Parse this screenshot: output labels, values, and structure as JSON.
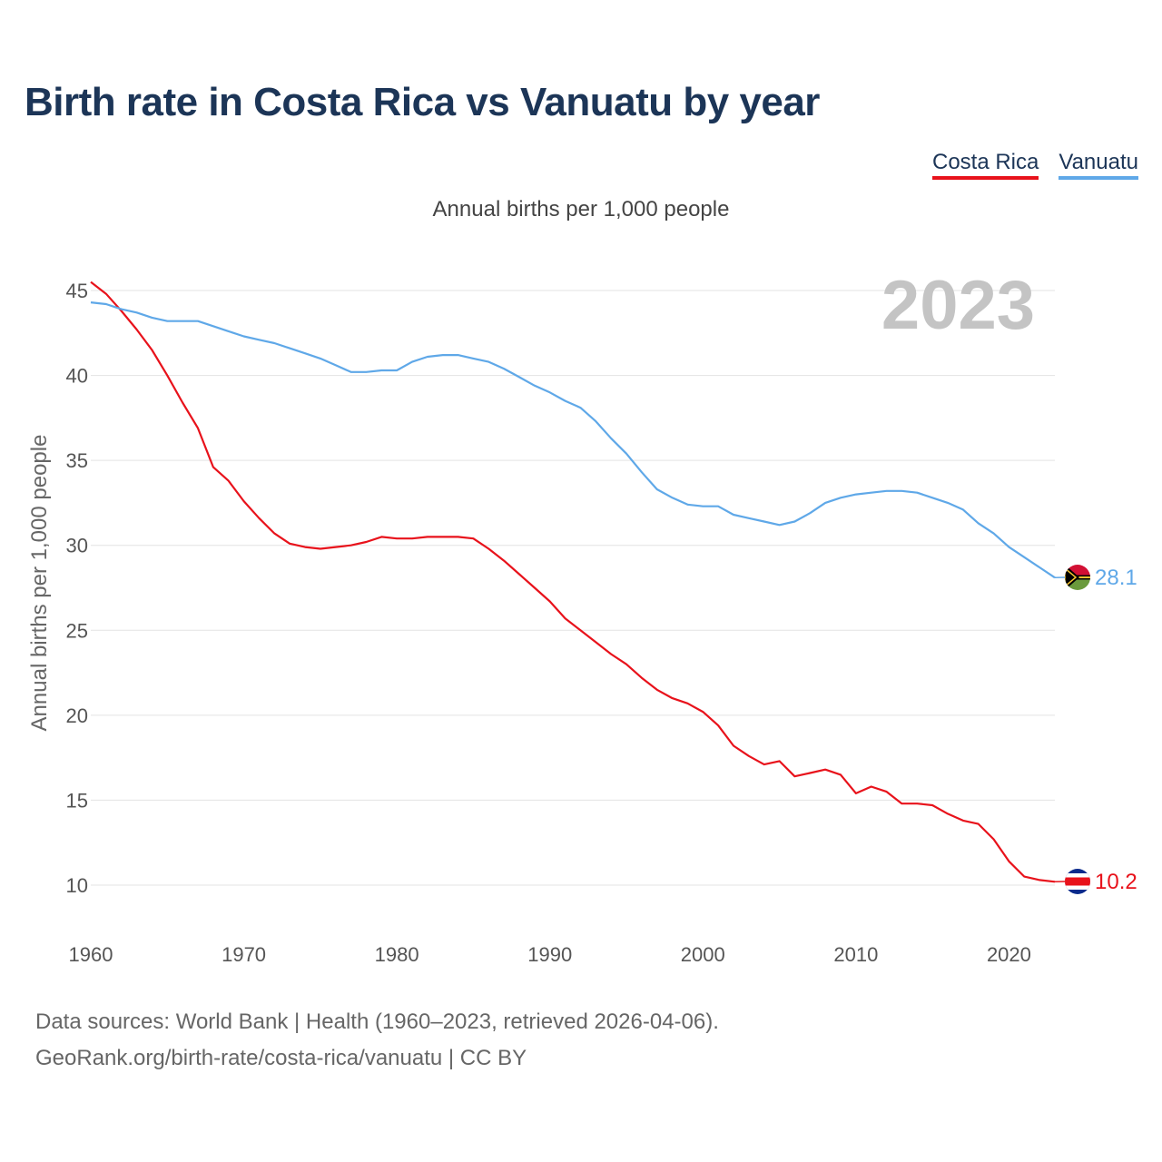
{
  "title": "Birth rate in Costa Rica vs Vanuatu by year",
  "legend": [
    {
      "label": "Costa Rica",
      "color": "#e8121b"
    },
    {
      "label": "Vanuatu",
      "color": "#5fa8e8"
    }
  ],
  "subtitle": "Annual births per 1,000 people",
  "year_label": "2023",
  "footer": {
    "line1": "Data sources: World Bank | Health (1960–2023, retrieved 2026-04-06).",
    "line2": "GeoRank.org/birth-rate/costa-rica/vanuatu | CC BY"
  },
  "chart_data": {
    "type": "line",
    "title": "Birth rate in Costa Rica vs Vanuatu by year",
    "ylabel": "Annual births per 1,000 people",
    "xlabel": "",
    "xlim": [
      1960,
      2023
    ],
    "ylim": [
      7.5,
      47.5
    ],
    "x_ticks": [
      1960,
      1970,
      1980,
      1990,
      2000,
      2010,
      2020
    ],
    "y_ticks": [
      10,
      15,
      20,
      25,
      30,
      35,
      40,
      45
    ],
    "grid": true,
    "x": [
      1960,
      1961,
      1962,
      1963,
      1964,
      1965,
      1966,
      1967,
      1968,
      1969,
      1970,
      1971,
      1972,
      1973,
      1974,
      1975,
      1976,
      1977,
      1978,
      1979,
      1980,
      1981,
      1982,
      1983,
      1984,
      1985,
      1986,
      1987,
      1988,
      1989,
      1990,
      1991,
      1992,
      1993,
      1994,
      1995,
      1996,
      1997,
      1998,
      1999,
      2000,
      2001,
      2002,
      2003,
      2004,
      2005,
      2006,
      2007,
      2008,
      2009,
      2010,
      2011,
      2012,
      2013,
      2014,
      2015,
      2016,
      2017,
      2018,
      2019,
      2020,
      2021,
      2022,
      2023
    ],
    "series": [
      {
        "name": "Costa Rica",
        "color": "#e8121b",
        "end_label": "10.2",
        "values": [
          45.5,
          44.8,
          43.8,
          42.7,
          41.5,
          40.0,
          38.4,
          36.9,
          34.6,
          33.8,
          32.6,
          31.6,
          30.7,
          30.1,
          29.9,
          29.8,
          29.9,
          30.0,
          30.2,
          30.5,
          30.4,
          30.4,
          30.5,
          30.5,
          30.5,
          30.4,
          29.8,
          29.1,
          28.3,
          27.5,
          26.7,
          25.7,
          25.0,
          24.3,
          23.6,
          23.0,
          22.2,
          21.5,
          21.0,
          20.7,
          20.2,
          19.4,
          18.2,
          17.6,
          17.1,
          17.3,
          16.4,
          16.6,
          16.8,
          16.5,
          15.4,
          15.8,
          15.5,
          14.8,
          14.8,
          14.7,
          14.2,
          13.8,
          13.6,
          12.7,
          11.4,
          10.5,
          10.3,
          10.2
        ]
      },
      {
        "name": "Vanuatu",
        "color": "#5fa8e8",
        "end_label": "28.1",
        "values": [
          44.3,
          44.2,
          43.9,
          43.7,
          43.4,
          43.2,
          43.2,
          43.2,
          42.9,
          42.6,
          42.3,
          42.1,
          41.9,
          41.6,
          41.3,
          41.0,
          40.6,
          40.2,
          40.2,
          40.3,
          40.3,
          40.8,
          41.1,
          41.2,
          41.2,
          41.0,
          40.8,
          40.4,
          39.9,
          39.4,
          39.0,
          38.5,
          38.1,
          37.3,
          36.3,
          35.4,
          34.3,
          33.3,
          32.8,
          32.4,
          32.3,
          32.3,
          31.8,
          31.6,
          31.4,
          31.2,
          31.4,
          31.9,
          32.5,
          32.8,
          33.0,
          33.1,
          33.2,
          33.2,
          33.1,
          32.8,
          32.5,
          32.1,
          31.3,
          30.7,
          29.9,
          29.3,
          28.7,
          28.1
        ]
      }
    ]
  }
}
